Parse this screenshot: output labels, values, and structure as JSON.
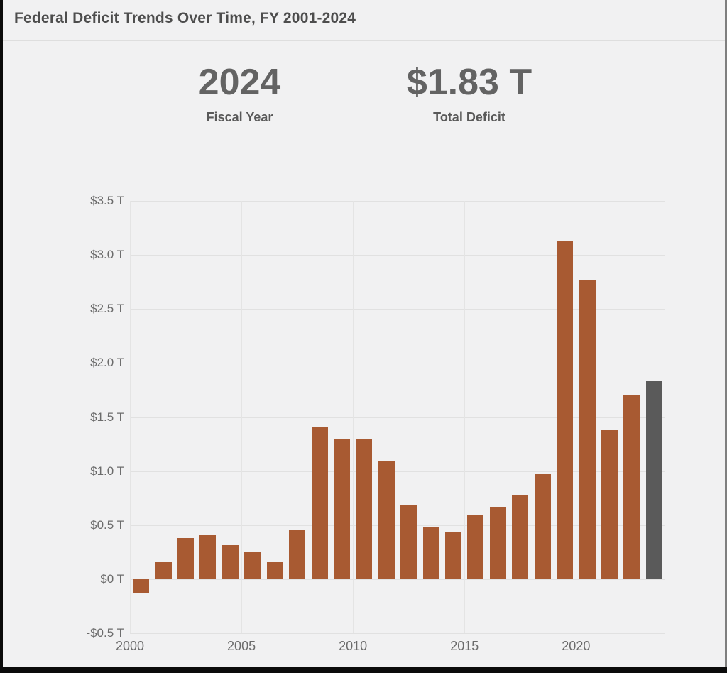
{
  "window": {
    "title": "Federal Deficit Trends Over Time, FY 2001-2024"
  },
  "stats": [
    {
      "value": "2024",
      "label": "Fiscal Year"
    },
    {
      "value": "$1.83 T",
      "label": "Total Deficit"
    }
  ],
  "chart_data": {
    "type": "bar",
    "title": "Federal Deficit Trends Over Time, FY 2001-2024",
    "xlabel": "",
    "ylabel": "",
    "unit": "trillions of dollars",
    "x": [
      2001,
      2002,
      2003,
      2004,
      2005,
      2006,
      2007,
      2008,
      2009,
      2010,
      2011,
      2012,
      2013,
      2014,
      2015,
      2016,
      2017,
      2018,
      2019,
      2020,
      2021,
      2022,
      2023,
      2024
    ],
    "values": [
      -0.13,
      0.16,
      0.38,
      0.41,
      0.32,
      0.25,
      0.16,
      0.46,
      1.41,
      1.29,
      1.3,
      1.09,
      0.68,
      0.48,
      0.44,
      0.59,
      0.67,
      0.78,
      0.98,
      3.13,
      2.77,
      1.38,
      1.7,
      1.83
    ],
    "highlight_year": 2024,
    "bar_color": "#a85a32",
    "highlight_color": "#5a5a5a",
    "ylim": [
      -0.5,
      3.5
    ],
    "grid": true,
    "legend": "none",
    "y_ticks": [
      {
        "value": 3.5,
        "label": "$3.5 T"
      },
      {
        "value": 3.0,
        "label": "$3.0 T"
      },
      {
        "value": 2.5,
        "label": "$2.5 T"
      },
      {
        "value": 2.0,
        "label": "$2.0 T"
      },
      {
        "value": 1.5,
        "label": "$1.5 T"
      },
      {
        "value": 1.0,
        "label": "$1.0 T"
      },
      {
        "value": 0.5,
        "label": "$0.5 T"
      },
      {
        "value": 0,
        "label": "$0 T"
      },
      {
        "value": -0.5,
        "label": "-$0.5 T"
      }
    ],
    "x_ticks": [
      {
        "value": 2000,
        "label": "2000"
      },
      {
        "value": 2005,
        "label": "2005"
      },
      {
        "value": 2010,
        "label": "2010"
      },
      {
        "value": 2015,
        "label": "2015"
      },
      {
        "value": 2020,
        "label": "2020"
      }
    ]
  }
}
